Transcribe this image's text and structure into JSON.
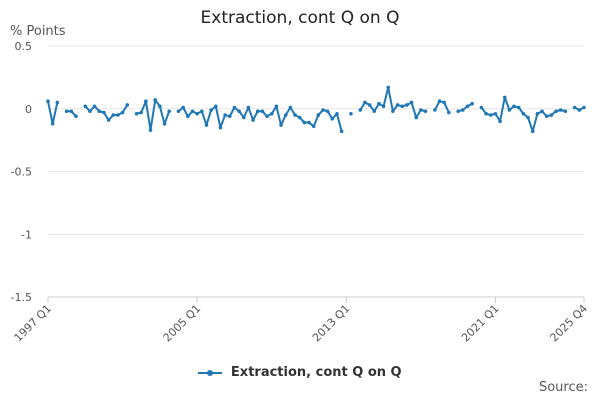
{
  "chart_data": {
    "type": "line",
    "title": "Extraction, cont Q on Q",
    "ylabel": "% Points",
    "xlabel": "",
    "ylim": [
      -1.5,
      0.5
    ],
    "yticks": [
      "0.5",
      "0",
      "-0.5",
      "-1",
      "-1.5"
    ],
    "ytick_values": [
      0.5,
      0,
      -0.5,
      -1,
      -1.5
    ],
    "xtick_labels": [
      "1997 Q1",
      "2005 Q1",
      "2013 Q1",
      "2021 Q1",
      "2025 Q4"
    ],
    "xtick_indices": [
      0,
      32,
      64,
      96,
      115
    ],
    "grid": true,
    "legend_position": "bottom",
    "source_label": "Source:",
    "color": "#1f77b4",
    "series": [
      {
        "name": "Extraction, cont Q on Q",
        "values": [
          0.06,
          -0.12,
          0.05,
          null,
          -0.02,
          -0.02,
          -0.06,
          null,
          0.02,
          -0.02,
          0.02,
          -0.02,
          -0.03,
          -0.09,
          -0.05,
          -0.05,
          -0.03,
          0.03,
          null,
          -0.04,
          -0.03,
          0.06,
          -0.17,
          0.07,
          0.02,
          -0.12,
          -0.02,
          null,
          -0.02,
          0.01,
          -0.06,
          -0.02,
          -0.04,
          -0.02,
          -0.13,
          -0.01,
          0.02,
          -0.15,
          -0.05,
          -0.06,
          0.01,
          -0.02,
          -0.07,
          0.01,
          -0.09,
          -0.02,
          -0.02,
          -0.06,
          -0.04,
          0.02,
          -0.13,
          -0.05,
          0.01,
          -0.05,
          -0.07,
          -0.11,
          -0.11,
          -0.14,
          -0.05,
          -0.01,
          -0.02,
          -0.08,
          -0.04,
          -0.18,
          null,
          -0.04,
          null,
          -0.01,
          0.05,
          0.03,
          -0.02,
          0.04,
          0.02,
          0.17,
          -0.02,
          0.03,
          0.02,
          0.03,
          0.05,
          -0.07,
          -0.01,
          -0.02,
          null,
          -0.01,
          0.06,
          0.05,
          -0.03,
          null,
          -0.02,
          -0.01,
          0.02,
          0.04,
          null,
          0.01,
          -0.04,
          -0.05,
          -0.04,
          -0.1,
          0.09,
          -0.01,
          0.02,
          0.01,
          -0.04,
          -0.07,
          -0.18,
          -0.04,
          -0.02,
          -0.06,
          -0.05,
          -0.02,
          -0.01,
          -0.02,
          null,
          0.01,
          -0.01,
          0.01
        ]
      }
    ]
  }
}
